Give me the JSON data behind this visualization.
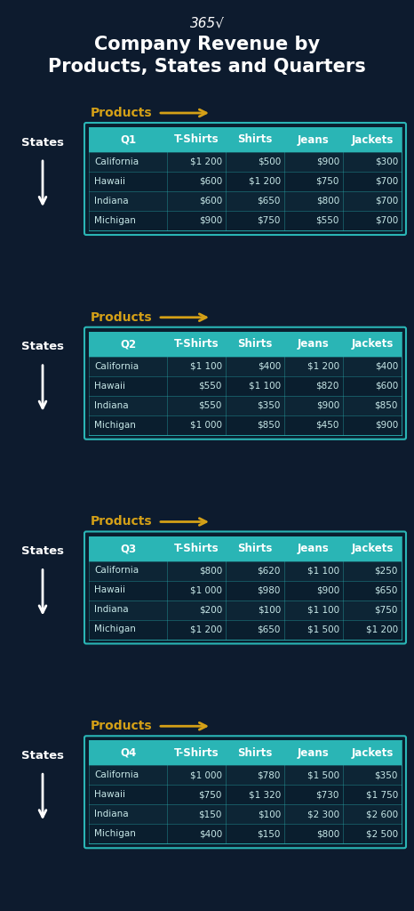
{
  "title_line1": "Company Revenue by",
  "title_line2": "Products, States and Quarters",
  "logo_text": "365√",
  "bg_color": "#0d1b2e",
  "header_color": "#2ab5b5",
  "header_text_color": "#ffffff",
  "cell_text_color": "#c8e8e8",
  "state_text_color": "#ffffff",
  "arrow_color": "#d4a017",
  "products_label_color": "#d4a017",
  "title_color": "#ffffff",
  "logo_color": "#ffffff",
  "table_border_color": "#2ab5b5",
  "table_outer_bg": "#0a1e2e",
  "cell_bg_even": "#0d2535",
  "cell_bg_odd": "#0a1e2e",
  "columns": [
    "T-Shirts",
    "Shirts",
    "Jeans",
    "Jackets"
  ],
  "rows": [
    "California",
    "Hawaii",
    "Indiana",
    "Michigan"
  ],
  "quarters": [
    {
      "quarter": "Q1",
      "data": [
        [
          "$1 200",
          "$500",
          "$900",
          "$300"
        ],
        [
          "$600",
          "$1 200",
          "$750",
          "$700"
        ],
        [
          "$600",
          "$650",
          "$800",
          "$700"
        ],
        [
          "$900",
          "$750",
          "$550",
          "$700"
        ]
      ]
    },
    {
      "quarter": "Q2",
      "data": [
        [
          "$1 100",
          "$400",
          "$1 200",
          "$400"
        ],
        [
          "$550",
          "$1 100",
          "$820",
          "$600"
        ],
        [
          "$550",
          "$350",
          "$900",
          "$850"
        ],
        [
          "$1 000",
          "$850",
          "$450",
          "$900"
        ]
      ]
    },
    {
      "quarter": "Q3",
      "data": [
        [
          "$800",
          "$620",
          "$1 100",
          "$250"
        ],
        [
          "$1 000",
          "$980",
          "$900",
          "$650"
        ],
        [
          "$200",
          "$100",
          "$1 100",
          "$750"
        ],
        [
          "$1 200",
          "$650",
          "$1 500",
          "$1 200"
        ]
      ]
    },
    {
      "quarter": "Q4",
      "data": [
        [
          "$1 000",
          "$780",
          "$1 500",
          "$350"
        ],
        [
          "$750",
          "$1 320",
          "$730",
          "$1 750"
        ],
        [
          "$150",
          "$100",
          "$2 300",
          "$2 600"
        ],
        [
          "$400",
          "$150",
          "$800",
          "$2 500"
        ]
      ]
    }
  ]
}
